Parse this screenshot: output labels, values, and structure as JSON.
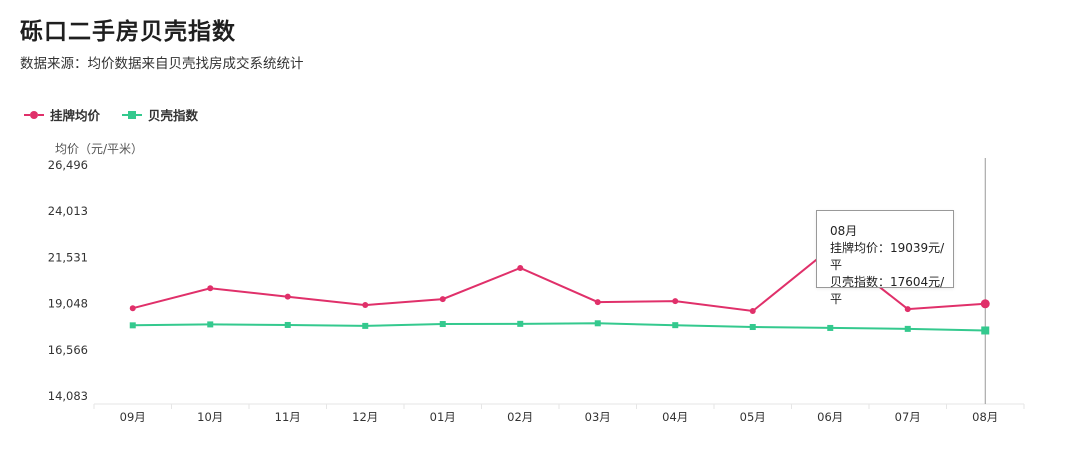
{
  "header": {
    "title": "砾口二手房贝壳指数",
    "subtitle": "数据来源：均价数据来自贝壳找房成交系统统计"
  },
  "colors": {
    "listing": "#e0306a",
    "index": "#34c98e",
    "grid": "#e8e8e8",
    "cursor": "#999999"
  },
  "tooltip": {
    "month": "08月",
    "line1": "挂牌均价：19039元/平",
    "line2": "贝壳指数：17604元/平"
  },
  "chart_data": {
    "type": "line",
    "title": "砾口二手房贝壳指数",
    "subtitle": "数据来源：均价数据来自贝壳找房成交系统统计",
    "ylabel": "均价（元/平米）",
    "categories": [
      "09月",
      "10月",
      "11月",
      "12月",
      "01月",
      "02月",
      "03月",
      "04月",
      "05月",
      "06月",
      "07月",
      "08月"
    ],
    "yticks": [
      "14,083",
      "16,566",
      "19,048",
      "21,531",
      "24,013",
      "26,496"
    ],
    "ylim": [
      14083,
      26496
    ],
    "legend": "top-left",
    "grid": false,
    "series": [
      {
        "name": "挂牌均价",
        "marker": "circle",
        "values": [
          18800,
          19870,
          19420,
          18970,
          19290,
          20960,
          19130,
          19180,
          18650,
          22010,
          18750,
          19039
        ]
      },
      {
        "name": "贝壳指数",
        "marker": "square",
        "values": [
          17880,
          17930,
          17900,
          17850,
          17950,
          17960,
          17990,
          17890,
          17790,
          17740,
          17690,
          17604
        ]
      }
    ],
    "highlight_index": 11
  }
}
